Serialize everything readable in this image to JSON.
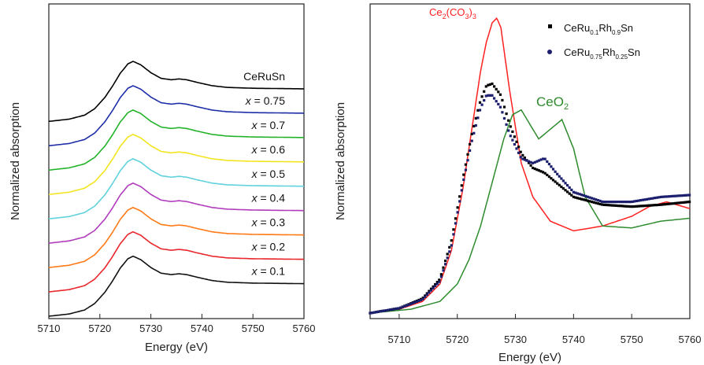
{
  "chart_data": [
    {
      "type": "line",
      "xlabel": "Energy (eV)",
      "ylabel": "Normalized absorption",
      "xlim": [
        5710,
        5760
      ],
      "xticks": [
        "5710",
        "5720",
        "5730",
        "5740",
        "5750",
        "5760"
      ],
      "y_ticks_shown": false,
      "legend": "inline labels right",
      "series": [
        {
          "name": "CeRuSn",
          "label_prefix": "",
          "label_value": "CeRuSn",
          "color": "#000000",
          "offset": 8.0
        },
        {
          "name": "x = 0.75",
          "label_prefix": "x",
          "label_value": " = 0.75",
          "color": "#1f2fa8",
          "offset": 7.0
        },
        {
          "name": "x = 0.7",
          "label_prefix": "x",
          "label_value": " = 0.7",
          "color": "#23b32a",
          "offset": 6.0
        },
        {
          "name": "x = 0.6",
          "label_prefix": "x",
          "label_value": " = 0.6",
          "color": "#f2e51f",
          "offset": 5.0
        },
        {
          "name": "x = 0.5",
          "label_prefix": "x",
          "label_value": " = 0.5",
          "color": "#5fd2dc",
          "offset": 4.0
        },
        {
          "name": "x = 0.4",
          "label_prefix": "x",
          "label_value": " = 0.4",
          "color": "#b03cbc",
          "offset": 3.0
        },
        {
          "name": "x = 0.3",
          "label_prefix": "x",
          "label_value": " = 0.3",
          "color": "#ff7a16",
          "offset": 2.0
        },
        {
          "name": "x = 0.2",
          "label_prefix": "x",
          "label_value": " = 0.2",
          "color": "#e8262c",
          "offset": 1.0
        },
        {
          "name": "x = 0.1",
          "label_prefix": "x",
          "label_value": " = 0.1",
          "color": "#111111",
          "offset": 0.0
        }
      ],
      "profile": {
        "x": [
          5710,
          5714,
          5717,
          5719,
          5721,
          5722.5,
          5724,
          5725.5,
          5726.5,
          5728,
          5730,
          5732,
          5734,
          5735.5,
          5737,
          5739,
          5742,
          5745,
          5750,
          5755,
          5760
        ],
        "y": [
          0.0,
          0.08,
          0.22,
          0.45,
          0.85,
          1.25,
          1.7,
          2.03,
          2.12,
          2.0,
          1.72,
          1.52,
          1.47,
          1.5,
          1.47,
          1.38,
          1.26,
          1.2,
          1.17,
          1.16,
          1.15
        ]
      }
    },
    {
      "type": "line",
      "xlabel": "Energy (eV)",
      "ylabel": "Normalized absorption",
      "xlim": [
        5705,
        5760
      ],
      "xticks": [
        "5710",
        "5720",
        "5730",
        "5740",
        "5750",
        "5760"
      ],
      "y_ticks_shown": false,
      "series": [
        {
          "name": "Ce2(CO3)3",
          "label": {
            "base": "Ce",
            "sub1": "2",
            "mid": "(CO",
            "sub2": "3",
            "end": ")",
            "sub3": "3"
          },
          "color": "#ff2020",
          "style": "line",
          "x": [
            5705,
            5710,
            5714,
            5717,
            5719,
            5721,
            5722.5,
            5724,
            5725,
            5726,
            5726.8,
            5727.5,
            5729,
            5731,
            5733,
            5736,
            5740,
            5745,
            5750,
            5753,
            5756,
            5760
          ],
          "y": [
            0.0,
            0.04,
            0.12,
            0.3,
            0.65,
            1.3,
            1.9,
            2.5,
            2.8,
            3.0,
            3.05,
            2.95,
            2.3,
            1.55,
            1.2,
            0.95,
            0.85,
            0.9,
            1.0,
            1.1,
            1.15,
            1.08
          ]
        },
        {
          "name": "CeO2",
          "label": {
            "base": "CeO",
            "sub1": "2"
          },
          "color": "#2e8b2e",
          "style": "line",
          "x": [
            5705,
            5712,
            5717,
            5720,
            5722,
            5724,
            5726,
            5728,
            5729.5,
            5731,
            5732.5,
            5734,
            5736,
            5738,
            5740,
            5742,
            5745,
            5750,
            5755,
            5760
          ],
          "y": [
            0.0,
            0.04,
            0.12,
            0.3,
            0.55,
            0.9,
            1.35,
            1.8,
            2.05,
            2.1,
            1.95,
            1.8,
            1.9,
            2.0,
            1.7,
            1.2,
            0.9,
            0.88,
            0.95,
            0.98
          ]
        },
        {
          "name": "CeRu0.1Rh0.9Sn",
          "label": {
            "base": "CeRu",
            "sub1": "0.1",
            "mid": "Rh",
            "sub2": "0.9",
            "end": "Sn"
          },
          "color": "#000000",
          "style": "markers",
          "x": [
            5705,
            5710,
            5714,
            5717,
            5719,
            5721,
            5722.5,
            5724,
            5725,
            5726,
            5727.5,
            5729,
            5731,
            5733,
            5735,
            5737,
            5740,
            5745,
            5750,
            5755,
            5760
          ],
          "y": [
            0.0,
            0.05,
            0.15,
            0.35,
            0.75,
            1.4,
            1.85,
            2.2,
            2.35,
            2.37,
            2.25,
            1.95,
            1.65,
            1.5,
            1.45,
            1.35,
            1.2,
            1.12,
            1.1,
            1.12,
            1.15
          ]
        },
        {
          "name": "CeRu0.75Rh0.25Sn",
          "label": {
            "base": "CeRu",
            "sub1": "0.75",
            "mid": "Rh",
            "sub2": "0.25",
            "end": "Sn"
          },
          "color": "#1c1f6e",
          "style": "markers",
          "x": [
            5705,
            5710,
            5714,
            5717,
            5719,
            5721,
            5722.5,
            5724,
            5725,
            5726,
            5727.5,
            5729,
            5731,
            5733,
            5735,
            5737,
            5740,
            5745,
            5750,
            5755,
            5760
          ],
          "y": [
            0.0,
            0.05,
            0.14,
            0.33,
            0.7,
            1.35,
            1.78,
            2.12,
            2.25,
            2.25,
            2.12,
            1.85,
            1.6,
            1.55,
            1.6,
            1.45,
            1.25,
            1.15,
            1.15,
            1.2,
            1.22
          ]
        }
      ]
    }
  ]
}
